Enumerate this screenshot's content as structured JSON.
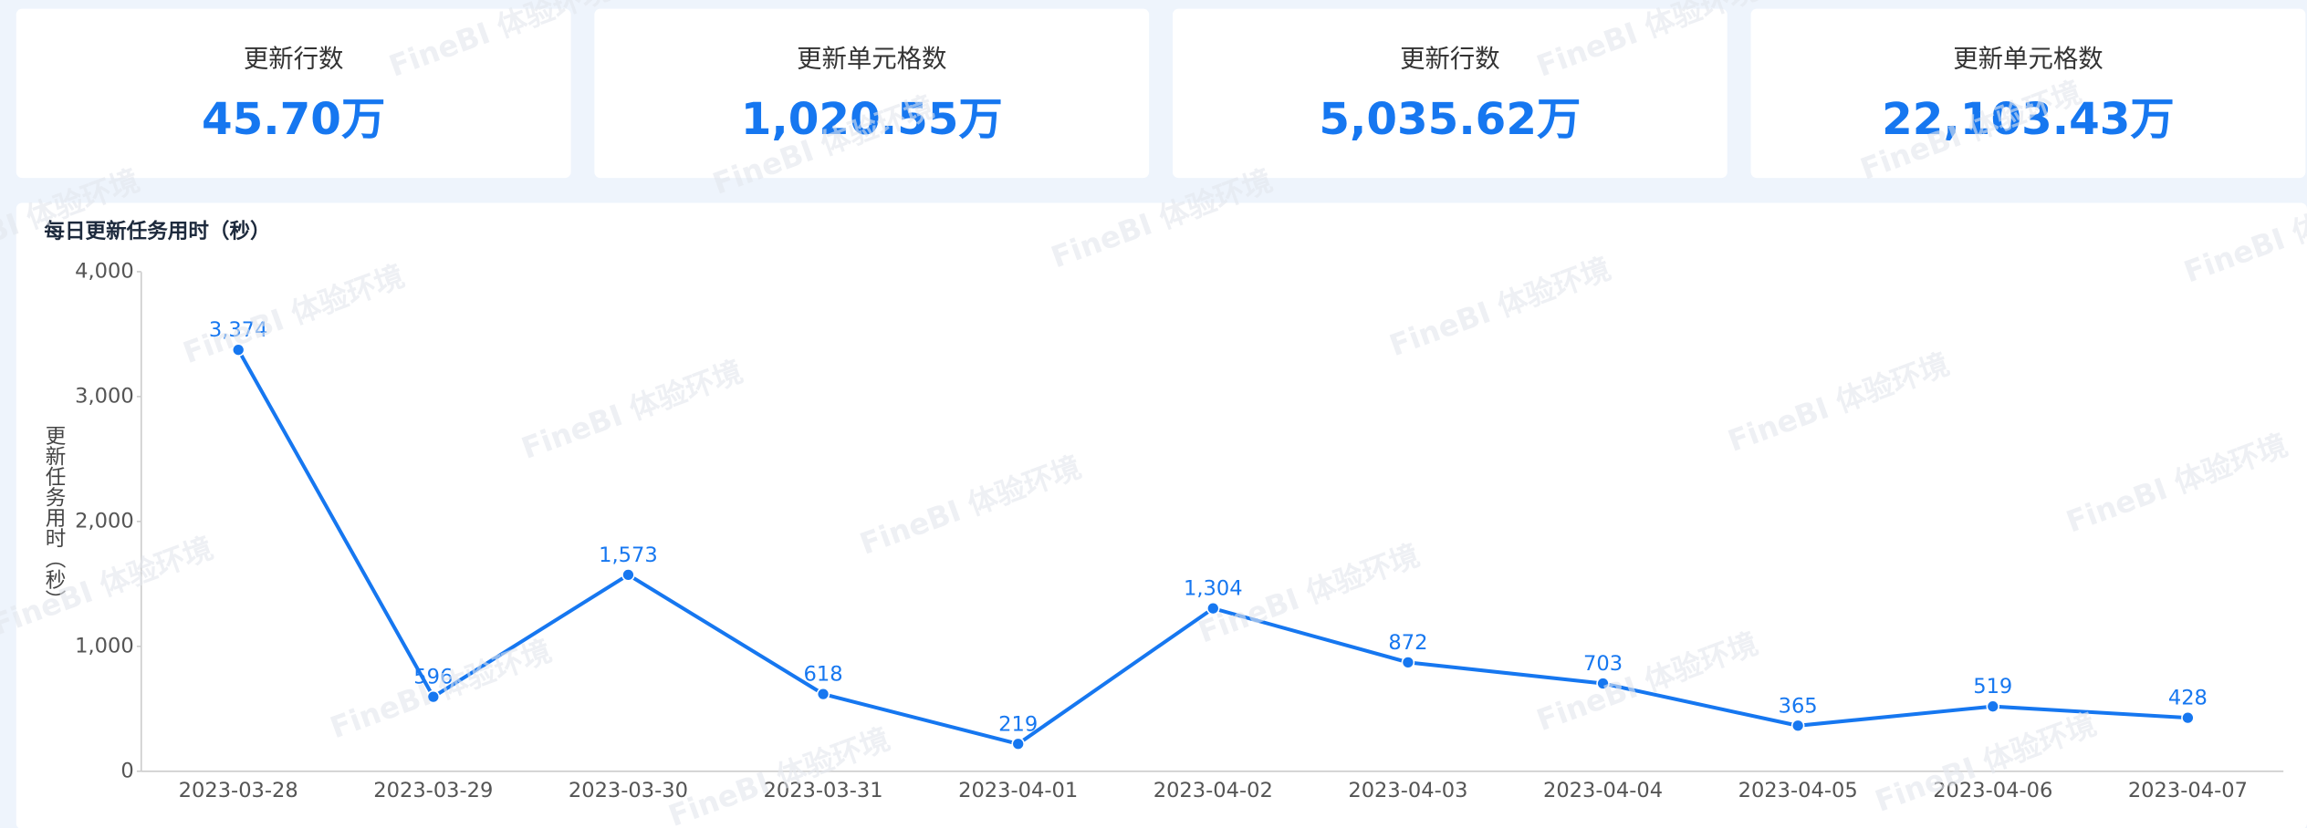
{
  "watermark": "FineBI 体验环境",
  "kpis": [
    {
      "label": "更新行数",
      "value": "45.70万"
    },
    {
      "label": "更新单元格数",
      "value": "1,020.55万"
    },
    {
      "label": "更新行数",
      "value": "5,035.62万"
    },
    {
      "label": "更新单元格数",
      "value": "22,103.43万"
    }
  ],
  "chart_data": {
    "type": "line",
    "title": "每日更新任务用时（秒）",
    "y_label": "更新任务用时（秒）",
    "categories": [
      "2023-03-28",
      "2023-03-29",
      "2023-03-30",
      "2023-03-31",
      "2023-04-01",
      "2023-04-02",
      "2023-04-03",
      "2023-04-04",
      "2023-04-05",
      "2023-04-06",
      "2023-04-07"
    ],
    "values": [
      3374,
      596,
      1573,
      618,
      219,
      1304,
      872,
      703,
      365,
      519,
      428
    ],
    "value_labels": [
      "3,374",
      "596",
      "1,573",
      "618",
      "219",
      "1,304",
      "872",
      "703",
      "365",
      "519",
      "428"
    ],
    "color": "#1677f0",
    "ylim": [
      0,
      4000
    ],
    "yticks": [
      0,
      {
        "value": 1000,
        "label": "1,000"
      },
      {
        "value": 2000,
        "label": "2,000"
      },
      {
        "value": 3000,
        "label": "3,000"
      },
      {
        "value": 4000,
        "label": "4,000"
      }
    ]
  }
}
